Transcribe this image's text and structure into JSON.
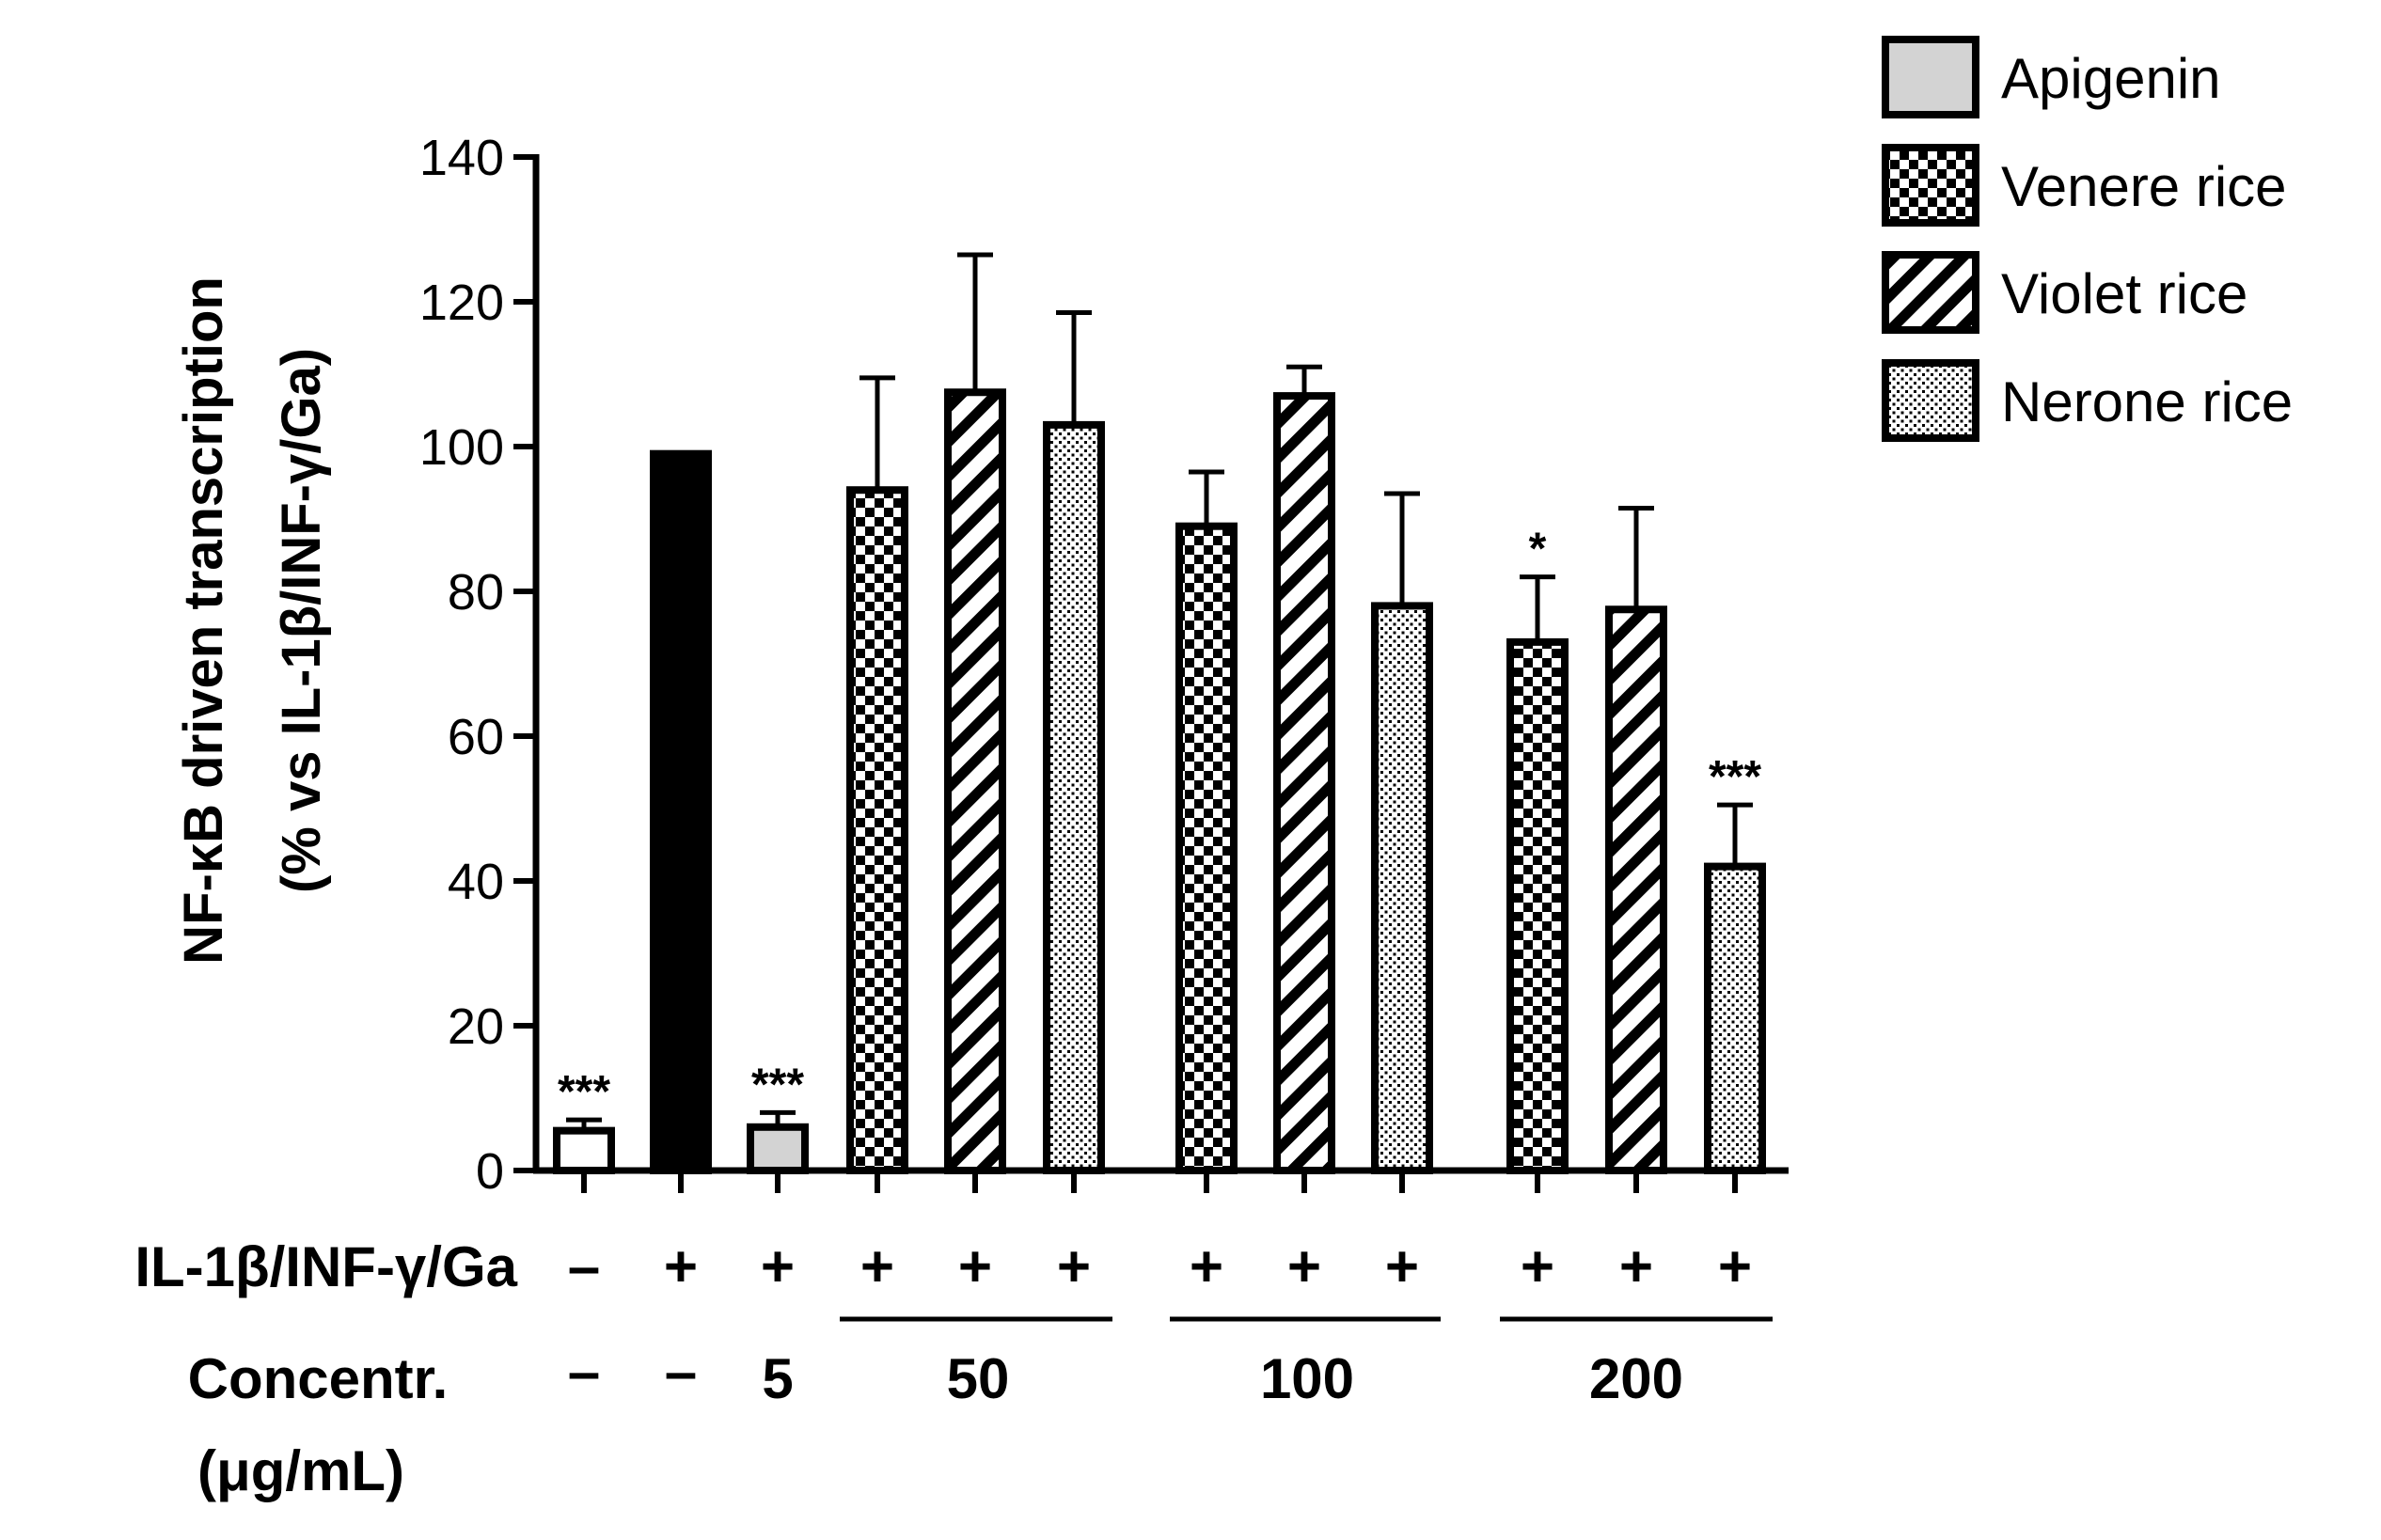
{
  "chart_data": {
    "type": "bar",
    "ylabel_line1": "NF-κB driven transcription",
    "ylabel_line2": "(% vs IL-1β/INF-γ/Ga)",
    "ylim": [
      0,
      140
    ],
    "yticks": [
      0,
      20,
      40,
      60,
      80,
      100,
      120,
      140
    ],
    "grid": false,
    "legend_position": "top-right",
    "legend": [
      {
        "name": "Apigenin",
        "pattern": "gray"
      },
      {
        "name": "Venere rice",
        "pattern": "checker"
      },
      {
        "name": "Violet rice",
        "pattern": "hatch"
      },
      {
        "name": "Nerone rice",
        "pattern": "dots"
      }
    ],
    "row_labels": {
      "treatment": "IL-1β/INF-γ/Ga",
      "concentration_line1": "Concentr.",
      "concentration_line2": "(μg/mL)"
    },
    "concentration_groups": [
      {
        "label": "5",
        "underline": false
      },
      {
        "label": "50",
        "underline": true
      },
      {
        "label": "100",
        "underline": true
      },
      {
        "label": "200",
        "underline": true
      }
    ],
    "bars": [
      {
        "value": 5.5,
        "error": 1.5,
        "pattern": "white",
        "treatment": "–",
        "concentration": "–",
        "sig": "***"
      },
      {
        "value": 99,
        "error": 0,
        "pattern": "black",
        "treatment": "+",
        "concentration": "–",
        "sig": ""
      },
      {
        "value": 6,
        "error": 2,
        "pattern": "gray",
        "treatment": "+",
        "concentration": "5",
        "sig": "***"
      },
      {
        "value": 94,
        "error": 15.5,
        "pattern": "checker",
        "treatment": "+",
        "concentration": "50",
        "sig": ""
      },
      {
        "value": 107.5,
        "error": 19,
        "pattern": "hatch",
        "treatment": "+",
        "concentration": "50",
        "sig": ""
      },
      {
        "value": 103,
        "error": 15.5,
        "pattern": "dots",
        "treatment": "+",
        "concentration": "50",
        "sig": ""
      },
      {
        "value": 89,
        "error": 7.5,
        "pattern": "checker",
        "treatment": "+",
        "concentration": "100",
        "sig": ""
      },
      {
        "value": 107,
        "error": 4,
        "pattern": "hatch",
        "treatment": "+",
        "concentration": "100",
        "sig": ""
      },
      {
        "value": 78,
        "error": 15.5,
        "pattern": "dots",
        "treatment": "+",
        "concentration": "100",
        "sig": ""
      },
      {
        "value": 73,
        "error": 9,
        "pattern": "checker",
        "treatment": "+",
        "concentration": "200",
        "sig": "*"
      },
      {
        "value": 77.5,
        "error": 14,
        "pattern": "hatch",
        "treatment": "+",
        "concentration": "200",
        "sig": ""
      },
      {
        "value": 42,
        "error": 8.5,
        "pattern": "dots",
        "treatment": "+",
        "concentration": "200",
        "sig": "***"
      }
    ]
  }
}
